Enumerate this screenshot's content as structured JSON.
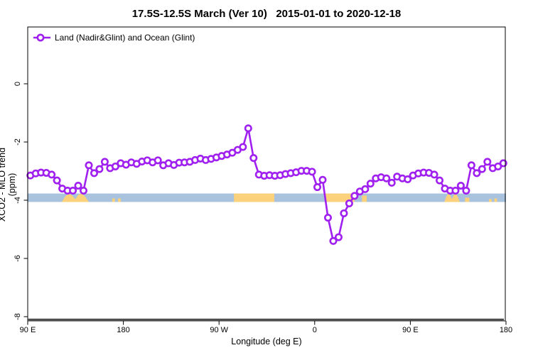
{
  "title": "17.5S-12.5S March (Ver 10)   2015-01-01 to 2020-12-18",
  "legend": {
    "label": "Land (Nadir&Glint) and Ocean (Glint)"
  },
  "chart_data": {
    "type": "line",
    "title": "17.5S-12.5S March (Ver 10)   2015-01-01 to 2020-12-18",
    "xlabel": "Longitude (deg E)",
    "ylabel": "XCO2 - MLO trend (ppm)",
    "series_name": "Land (Nadir&Glint) and Ocean (Glint)",
    "line_color": "#a020f0",
    "marker": "open-circle",
    "x_range_axis_deg": [
      90,
      540
    ],
    "y_range": [
      -8.2,
      2
    ],
    "grid": "off",
    "legend_position": "top-left",
    "x_ticks": [
      {
        "pos": 90,
        "label": "90 E"
      },
      {
        "pos": 180,
        "label": "180"
      },
      {
        "pos": 270,
        "label": "90 W"
      },
      {
        "pos": 360,
        "label": "0"
      },
      {
        "pos": 450,
        "label": "90 E"
      },
      {
        "pos": 540,
        "label": "180"
      }
    ],
    "y_ticks": [
      {
        "pos": 0,
        "label": "0"
      },
      {
        "pos": -2,
        "label": "-2"
      },
      {
        "pos": -4,
        "label": "-4"
      },
      {
        "pos": -6,
        "label": "-6"
      },
      {
        "pos": -8,
        "label": "-8"
      }
    ],
    "x_axis_deg": [
      92.5,
      97.5,
      102.5,
      107.5,
      112.5,
      117.5,
      122.5,
      127.5,
      132.5,
      137.5,
      142.5,
      147.5,
      152.5,
      157.5,
      162.5,
      167.5,
      172.5,
      177.5,
      182.5,
      187.5,
      192.5,
      197.5,
      202.5,
      207.5,
      212.5,
      217.5,
      222.5,
      227.5,
      232.5,
      237.5,
      242.5,
      247.5,
      252.5,
      257.5,
      262.5,
      267.5,
      272.5,
      277.5,
      282.5,
      287.5,
      292.5,
      297.5,
      302.5,
      307.5,
      312.5,
      317.5,
      322.5,
      327.5,
      332.5,
      337.5,
      342.5,
      347.5,
      352.5,
      357.5,
      362.5,
      367.5,
      372.5,
      377.5,
      382.5,
      387.5,
      392.5,
      397.5,
      402.5,
      407.5,
      412.5,
      417.5,
      422.5,
      427.5,
      432.5,
      437.5,
      442.5,
      447.5,
      452.5,
      457.5,
      462.5,
      467.5,
      472.5,
      477.5,
      482.5,
      487.5,
      492.5,
      497.5,
      502.5,
      507.5,
      512.5,
      517.5,
      522.5,
      527.5,
      532.5,
      537.5
    ],
    "values": [
      -3.15,
      -3.08,
      -3.05,
      -3.06,
      -3.12,
      -3.32,
      -3.6,
      -3.67,
      -3.67,
      -3.5,
      -3.67,
      -2.8,
      -3.07,
      -2.93,
      -2.68,
      -2.9,
      -2.84,
      -2.73,
      -2.78,
      -2.7,
      -2.75,
      -2.67,
      -2.63,
      -2.7,
      -2.63,
      -2.8,
      -2.73,
      -2.79,
      -2.71,
      -2.7,
      -2.68,
      -2.62,
      -2.57,
      -2.62,
      -2.58,
      -2.53,
      -2.48,
      -2.43,
      -2.37,
      -2.27,
      -2.17,
      -1.53,
      -2.55,
      -3.12,
      -3.16,
      -3.14,
      -3.16,
      -3.14,
      -3.1,
      -3.07,
      -3.04,
      -2.99,
      -2.99,
      -3.02,
      -3.55,
      -3.3,
      -4.6,
      -5.4,
      -5.27,
      -4.45,
      -4.11,
      -3.85,
      -3.7,
      -3.62,
      -3.43,
      -3.25,
      -3.21,
      -3.25,
      -3.4,
      -3.19,
      -3.25,
      -3.28,
      -3.15,
      -3.08,
      -3.05,
      -3.06,
      -3.12,
      -3.32,
      -3.6,
      -3.67,
      -3.67,
      -3.5,
      -3.67,
      -2.8,
      -3.07,
      -2.93,
      -2.68,
      -2.9,
      -2.84,
      -2.73
    ],
    "surface_band": {
      "description": "ocean/land indicator strip",
      "ocean_color": "#a9c2dd",
      "land_color": "#fcd17c",
      "y_top": -3.77,
      "y_bottom": -4.06,
      "ocean_extent_axis_deg": [
        90,
        540
      ],
      "land_segments": [
        {
          "from": 122.0,
          "to": 147.5,
          "peaks": true
        },
        {
          "from": 169.5,
          "to": 172.0,
          "h": 5
        },
        {
          "from": 175.0,
          "to": 177.5,
          "h": 5
        },
        {
          "from": 284.0,
          "to": 322.0
        },
        {
          "from": 370.0,
          "to": 397.5
        },
        {
          "from": 404.5,
          "to": 409.0,
          "h": 9
        },
        {
          "from": 482.0,
          "to": 496.5,
          "peaks": true
        },
        {
          "from": 501.5,
          "to": 505.5,
          "h": 6
        },
        {
          "from": 524.0,
          "to": 526.5,
          "h": 4
        },
        {
          "from": 529.0,
          "to": 531.5,
          "h": 5
        }
      ]
    }
  }
}
